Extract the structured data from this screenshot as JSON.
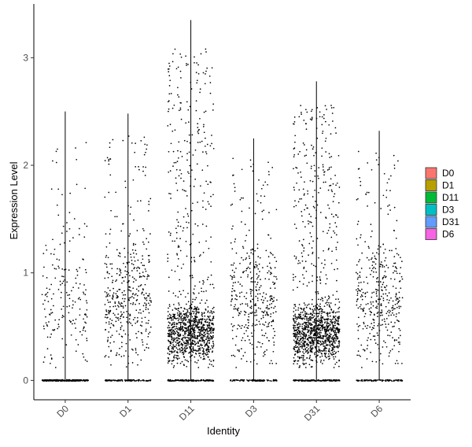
{
  "chart_data": {
    "type": "scatter",
    "subtype": "violin-jitter",
    "title": "",
    "xlabel": "Identity",
    "ylabel": "Expression Level",
    "ylim": [
      -0.18,
      3.5
    ],
    "yticks": [
      0,
      1,
      2,
      3
    ],
    "categories": [
      "D0",
      "D1",
      "D11",
      "D3",
      "D31",
      "D6"
    ],
    "series": [
      {
        "name": "D0",
        "color": "#F8766D",
        "max": 2.5,
        "n_points": 450,
        "n_nonzero": 190
      },
      {
        "name": "D1",
        "color": "#B79F00",
        "max": 2.48,
        "n_points": 540,
        "n_nonzero": 430
      },
      {
        "name": "D11",
        "color": "#00BA38",
        "max": 3.35,
        "n_points": 1300,
        "n_nonzero": 1150
      },
      {
        "name": "D3",
        "color": "#00BFC4",
        "max": 2.25,
        "n_points": 480,
        "n_nonzero": 380
      },
      {
        "name": "D31",
        "color": "#619CFF",
        "max": 2.78,
        "n_points": 1400,
        "n_nonzero": 1250
      },
      {
        "name": "D6",
        "color": "#F564E3",
        "max": 2.32,
        "n_points": 480,
        "n_nonzero": 390
      }
    ],
    "legend": {
      "position": "right",
      "items": [
        "D0",
        "D1",
        "D11",
        "D3",
        "D31",
        "D6"
      ]
    },
    "grid": false
  }
}
